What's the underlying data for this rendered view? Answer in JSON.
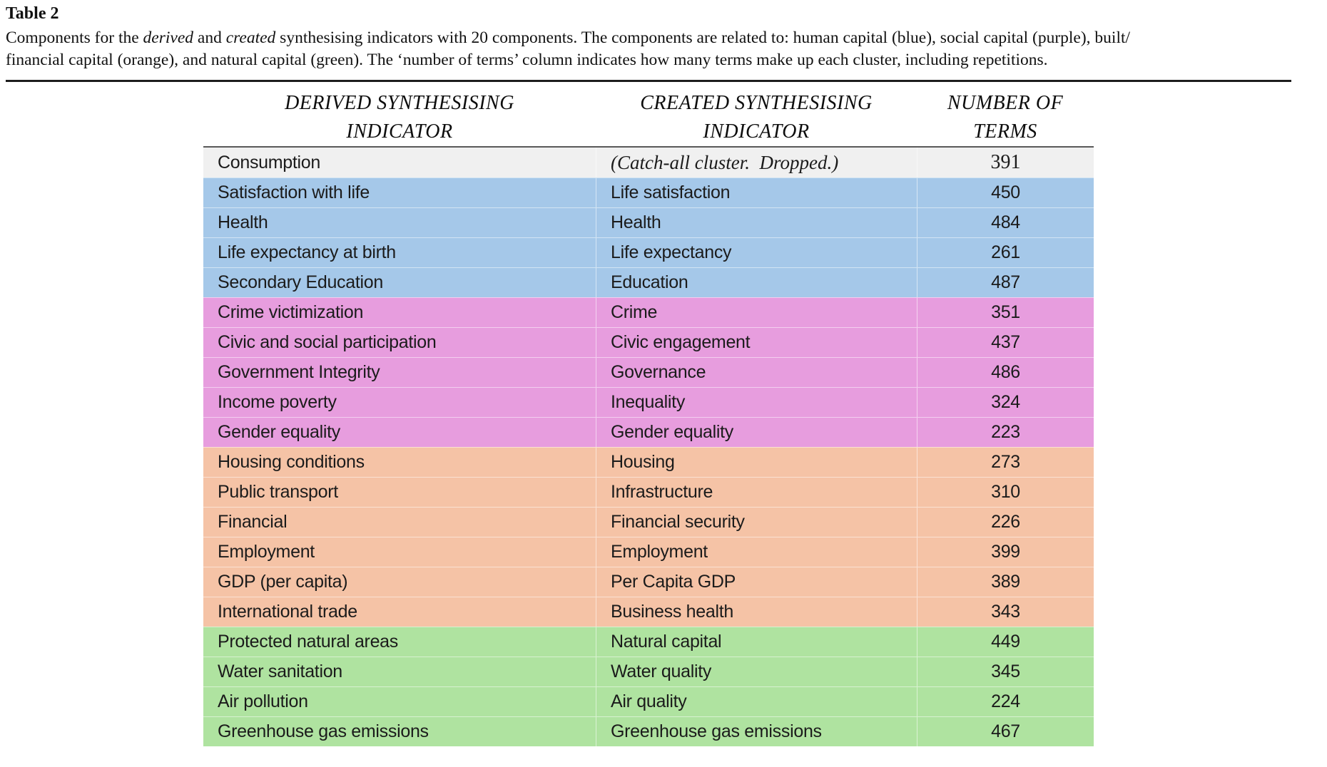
{
  "title": "Table 2",
  "caption": {
    "seg1": "Components for the ",
    "italic1": "derived",
    "seg2": " and ",
    "italic2": "created",
    "seg3": " synthesising indicators with 20 components. The components are related to: human capital (blue), social capital (purple), built/",
    "line2": "financial capital (orange), and natural capital (green). The ‘number of terms’ column indicates how many terms make up each cluster, including repetitions."
  },
  "table": {
    "headers": [
      {
        "line1": "DERIVED SYNTHESISING",
        "line2": "INDICATOR"
      },
      {
        "line1": "CREATED SYNTHESISING",
        "line2": "INDICATOR"
      },
      {
        "line1": "NUMBER OF",
        "line2": "TERMS"
      }
    ],
    "category_colors": {
      "plain": "#f0f0f0",
      "human": "#a5c8e9",
      "social": "#e79dde",
      "built": "#f5c3a6",
      "natural": "#afe3a0"
    },
    "category_legend": {
      "human": "human capital (blue)",
      "social": "social capital (purple)",
      "built": "built/financial capital (orange)",
      "natural": "natural capital (green)"
    },
    "rows": [
      {
        "derived": "Consumption",
        "created": "(Catch-all cluster.  Dropped.)",
        "terms": "391",
        "category": "plain"
      },
      {
        "derived": "Satisfaction with life",
        "created": "Life satisfaction",
        "terms": "450",
        "category": "human"
      },
      {
        "derived": "Health",
        "created": "Health",
        "terms": "484",
        "category": "human"
      },
      {
        "derived": "Life expectancy at birth",
        "created": "Life expectancy",
        "terms": "261",
        "category": "human"
      },
      {
        "derived": "Secondary Education",
        "created": "Education",
        "terms": "487",
        "category": "human"
      },
      {
        "derived": "Crime victimization",
        "created": "Crime",
        "terms": "351",
        "category": "social"
      },
      {
        "derived": "Civic and social participation",
        "created": "Civic engagement",
        "terms": "437",
        "category": "social"
      },
      {
        "derived": "Government Integrity",
        "created": "Governance",
        "terms": "486",
        "category": "social"
      },
      {
        "derived": "Income poverty",
        "created": "Inequality",
        "terms": "324",
        "category": "social"
      },
      {
        "derived": "Gender equality",
        "created": "Gender equality",
        "terms": "223",
        "category": "social"
      },
      {
        "derived": "Housing conditions",
        "created": "Housing",
        "terms": "273",
        "category": "built"
      },
      {
        "derived": "Public transport",
        "created": "Infrastructure",
        "terms": "310",
        "category": "built"
      },
      {
        "derived": "Financial",
        "created": "Financial security",
        "terms": "226",
        "category": "built"
      },
      {
        "derived": "Employment",
        "created": "Employment",
        "terms": "399",
        "category": "built"
      },
      {
        "derived": "GDP (per capita)",
        "created": "Per Capita GDP",
        "terms": "389",
        "category": "built"
      },
      {
        "derived": "International trade",
        "created": "Business health",
        "terms": "343",
        "category": "built"
      },
      {
        "derived": "Protected natural areas",
        "created": "Natural capital",
        "terms": "449",
        "category": "natural"
      },
      {
        "derived": "Water sanitation",
        "created": "Water quality",
        "terms": "345",
        "category": "natural"
      },
      {
        "derived": "Air pollution",
        "created": "Air quality",
        "terms": "224",
        "category": "natural"
      },
      {
        "derived": "Greenhouse gas emissions",
        "created": "Greenhouse gas emissions",
        "terms": "467",
        "category": "natural"
      }
    ]
  }
}
